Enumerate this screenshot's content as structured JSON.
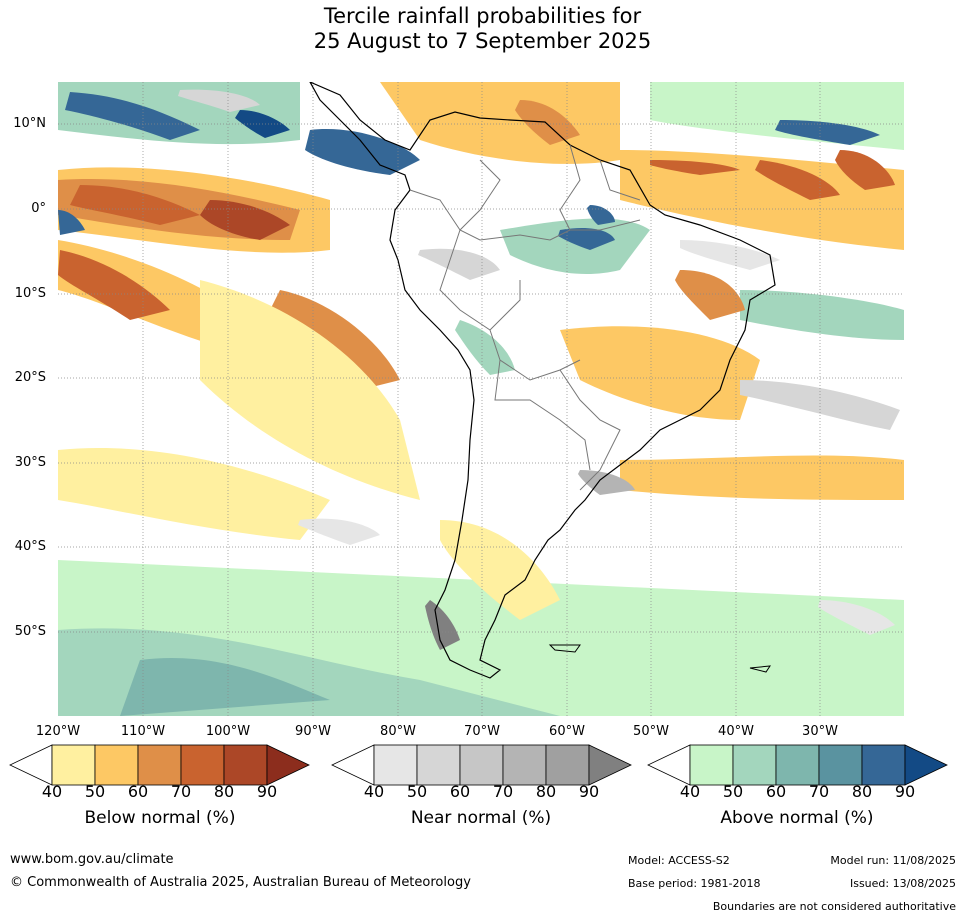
{
  "title": {
    "line1": "Tercile rainfall probabilities for",
    "line2": "25 August to 7 September 2025"
  },
  "latitude_labels": [
    "10°N",
    "0°",
    "10°S",
    "20°S",
    "30°S",
    "40°S",
    "50°S"
  ],
  "longitude_labels": [
    "120°W",
    "110°W",
    "100°W",
    "90°W",
    "80°W",
    "70°W",
    "60°W",
    "50°W",
    "40°W",
    "30°W"
  ],
  "colorbars": [
    {
      "title": "Below normal (%)",
      "ticks": [
        "40",
        "50",
        "60",
        "70",
        "80",
        "90"
      ],
      "colors": [
        "#fff0a0",
        "#fdc864",
        "#df8f48",
        "#c9632f",
        "#ac4727",
        "#8c2d1d"
      ]
    },
    {
      "title": "Near normal (%)",
      "ticks": [
        "40",
        "50",
        "60",
        "70",
        "80",
        "90"
      ],
      "colors": [
        "#e6e6e6",
        "#d6d6d6",
        "#c6c6c6",
        "#b4b4b4",
        "#a0a0a0",
        "#808080"
      ]
    },
    {
      "title": "Above normal (%)",
      "ticks": [
        "40",
        "50",
        "60",
        "70",
        "80",
        "90"
      ],
      "colors": [
        "#c8f5c8",
        "#a3d6bd",
        "#7eb6ad",
        "#5a93a0",
        "#356796",
        "#134a85"
      ]
    }
  ],
  "footer": {
    "website": "www.bom.gov.au/climate",
    "copyright": "© Commonwealth of Australia 2025, Australian Bureau of Meteorology",
    "model": "Model: ACCESS-S2",
    "base_period": "Base period: 1981-2018",
    "model_run": "Model run: 11/08/2025",
    "issued": "Issued: 13/08/2025",
    "disclaimer": "Boundaries are not considered authoritative"
  }
}
